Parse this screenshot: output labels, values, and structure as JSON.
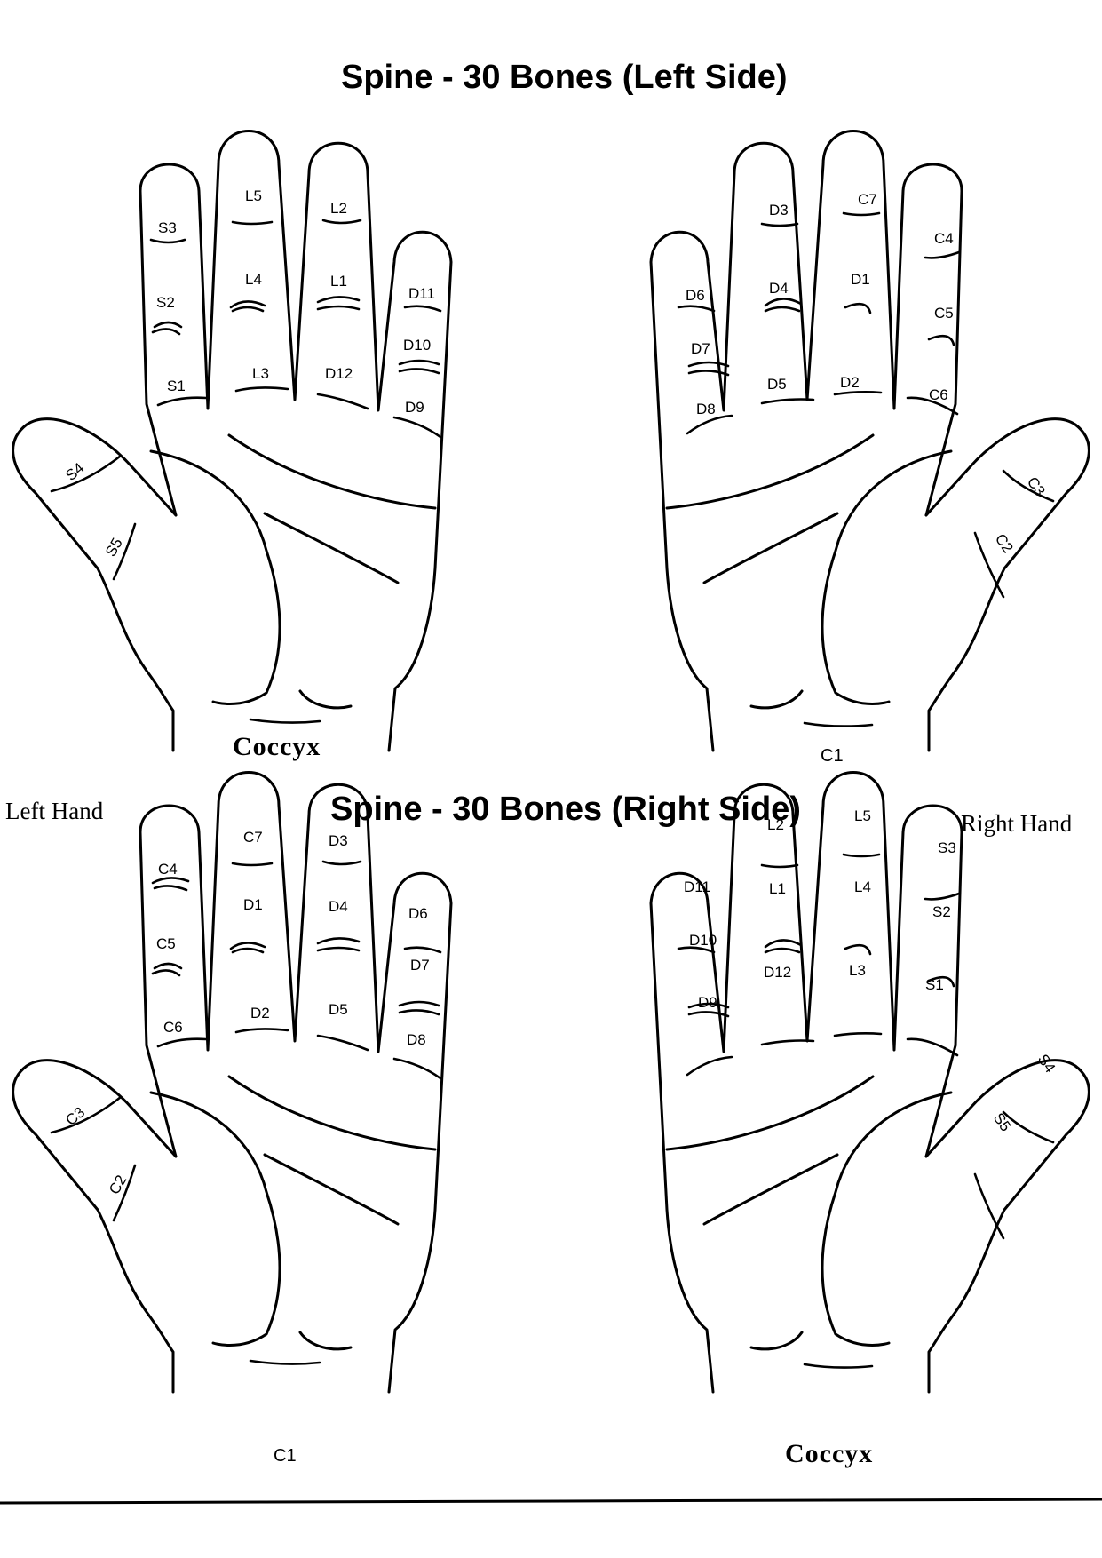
{
  "top": {
    "title": "Spine - 30 Bones (Left Side)",
    "left_hand": {
      "fingers": {
        "little": [
          "S3",
          "S2",
          "S1"
        ],
        "ring": [
          "L5",
          "L4",
          "L3"
        ],
        "middle": [
          "L2",
          "L1",
          "D12"
        ],
        "index": [
          "D11",
          "D10",
          "D9"
        ],
        "thumb": [
          "S4",
          "S5"
        ]
      },
      "wrist_label": "Coccyx"
    },
    "right_hand": {
      "fingers": {
        "index": [
          "D6",
          "D7",
          "D8"
        ],
        "middle": [
          "D3",
          "D4",
          "D5"
        ],
        "ring": [
          "C7",
          "D1",
          "D2"
        ],
        "little": [
          "C4",
          "C5",
          "C6"
        ],
        "thumb": [
          "C3",
          "C2"
        ]
      },
      "wrist_label": "C1"
    }
  },
  "bottom": {
    "title": "Spine - 30 Bones (Right Side)",
    "left_caption": "Left Hand",
    "right_caption": "Right Hand",
    "left_hand": {
      "fingers": {
        "little": [
          "C4",
          "C5",
          "C6"
        ],
        "ring": [
          "C7",
          "D1",
          "D2"
        ],
        "middle": [
          "D3",
          "D4",
          "D5"
        ],
        "index": [
          "D6",
          "D7",
          "D8"
        ],
        "thumb": [
          "C3",
          "C2"
        ]
      },
      "wrist_label": "C1"
    },
    "right_hand": {
      "fingers": {
        "index": [
          "D11",
          "D10",
          "D9"
        ],
        "middle": [
          "L2",
          "L1",
          "D12"
        ],
        "ring": [
          "L5",
          "L4",
          "L3"
        ],
        "little": [
          "S3",
          "S2",
          "S1"
        ],
        "thumb": [
          "S4",
          "S5"
        ]
      },
      "wrist_label": "Coccyx"
    }
  }
}
